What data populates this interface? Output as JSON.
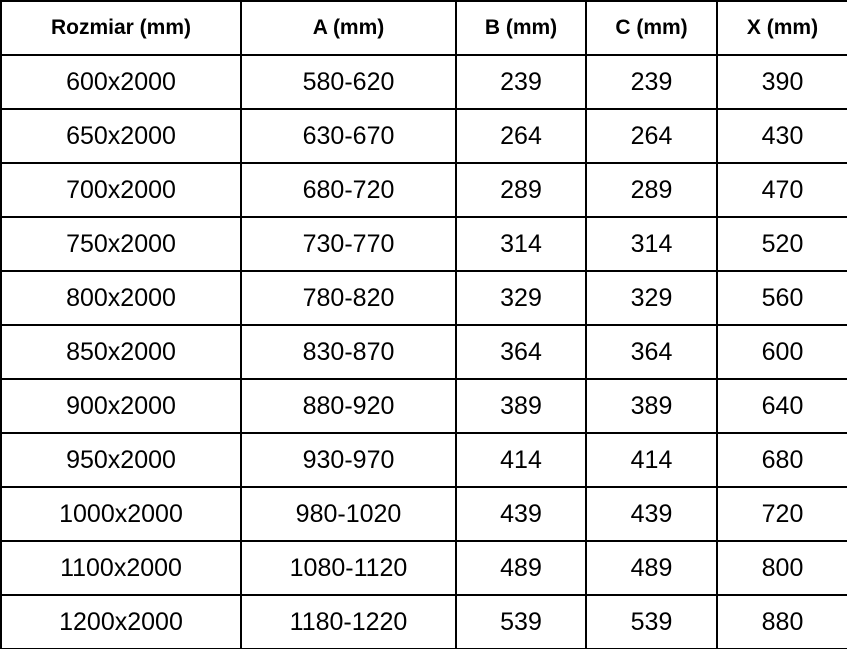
{
  "colors": {
    "text": "#000000",
    "border": "#000000",
    "background": "#ffffff"
  },
  "table": {
    "headers": [
      "Rozmiar (mm)",
      "A (mm)",
      "B (mm)",
      "C (mm)",
      "X (mm)"
    ],
    "rows": [
      [
        "600x2000",
        "580-620",
        "239",
        "239",
        "390"
      ],
      [
        "650x2000",
        "630-670",
        "264",
        "264",
        "430"
      ],
      [
        "700x2000",
        "680-720",
        "289",
        "289",
        "470"
      ],
      [
        "750x2000",
        "730-770",
        "314",
        "314",
        "520"
      ],
      [
        "800x2000",
        "780-820",
        "329",
        "329",
        "560"
      ],
      [
        "850x2000",
        "830-870",
        "364",
        "364",
        "600"
      ],
      [
        "900x2000",
        "880-920",
        "389",
        "389",
        "640"
      ],
      [
        "950x2000",
        "930-970",
        "414",
        "414",
        "680"
      ],
      [
        "1000x2000",
        "980-1020",
        "439",
        "439",
        "720"
      ],
      [
        "1100x2000",
        "1080-1120",
        "489",
        "489",
        "800"
      ],
      [
        "1200x2000",
        "1180-1220",
        "539",
        "539",
        "880"
      ]
    ]
  }
}
